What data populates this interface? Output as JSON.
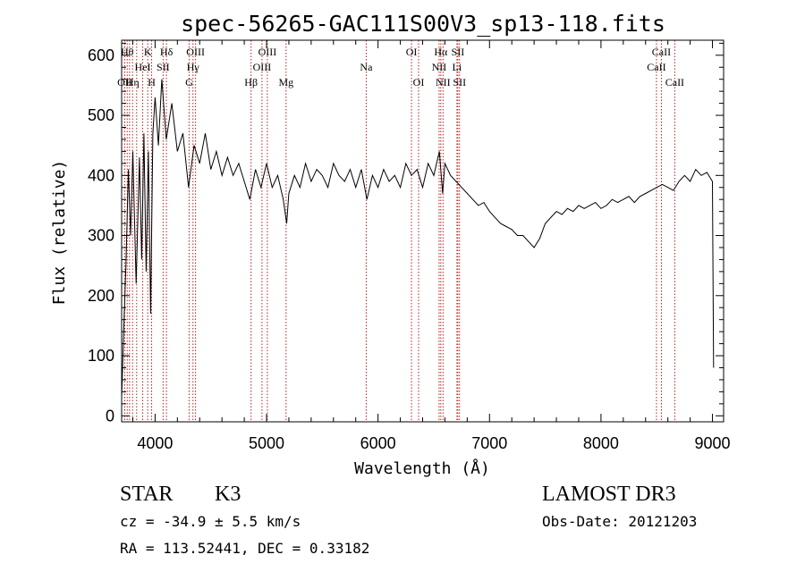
{
  "chart_data": {
    "type": "line",
    "title": "spec-56265-GAC111S00V3_sp13-118.fits",
    "xlabel": "Wavelength (Å)",
    "ylabel": "Flux (relative)",
    "xlim": [
      3700,
      9100
    ],
    "ylim": [
      -10,
      625
    ],
    "xticks": [
      4000,
      5000,
      6000,
      7000,
      8000,
      9000
    ],
    "yticks": [
      0,
      100,
      200,
      300,
      400,
      500,
      600
    ],
    "series": [
      {
        "name": "flux",
        "points": [
          [
            3700,
            30
          ],
          [
            3720,
            150
          ],
          [
            3740,
            260
          ],
          [
            3760,
            410
          ],
          [
            3780,
            300
          ],
          [
            3800,
            440
          ],
          [
            3830,
            220
          ],
          [
            3860,
            430
          ],
          [
            3880,
            260
          ],
          [
            3900,
            470
          ],
          [
            3920,
            240
          ],
          [
            3940,
            440
          ],
          [
            3960,
            170
          ],
          [
            3980,
            470
          ],
          [
            4000,
            530
          ],
          [
            4030,
            450
          ],
          [
            4060,
            560
          ],
          [
            4100,
            460
          ],
          [
            4150,
            520
          ],
          [
            4200,
            440
          ],
          [
            4250,
            470
          ],
          [
            4300,
            380
          ],
          [
            4350,
            450
          ],
          [
            4400,
            420
          ],
          [
            4450,
            470
          ],
          [
            4500,
            410
          ],
          [
            4550,
            440
          ],
          [
            4600,
            400
          ],
          [
            4650,
            430
          ],
          [
            4700,
            400
          ],
          [
            4750,
            420
          ],
          [
            4800,
            390
          ],
          [
            4850,
            360
          ],
          [
            4900,
            410
          ],
          [
            4950,
            380
          ],
          [
            5000,
            420
          ],
          [
            5050,
            380
          ],
          [
            5100,
            400
          ],
          [
            5150,
            360
          ],
          [
            5180,
            320
          ],
          [
            5200,
            370
          ],
          [
            5250,
            400
          ],
          [
            5300,
            380
          ],
          [
            5350,
            420
          ],
          [
            5400,
            390
          ],
          [
            5450,
            410
          ],
          [
            5500,
            400
          ],
          [
            5550,
            380
          ],
          [
            5600,
            420
          ],
          [
            5650,
            400
          ],
          [
            5700,
            390
          ],
          [
            5750,
            410
          ],
          [
            5800,
            380
          ],
          [
            5850,
            410
          ],
          [
            5900,
            360
          ],
          [
            5950,
            400
          ],
          [
            6000,
            380
          ],
          [
            6050,
            410
          ],
          [
            6100,
            390
          ],
          [
            6150,
            400
          ],
          [
            6200,
            380
          ],
          [
            6250,
            420
          ],
          [
            6300,
            400
          ],
          [
            6350,
            410
          ],
          [
            6400,
            380
          ],
          [
            6450,
            420
          ],
          [
            6500,
            400
          ],
          [
            6550,
            440
          ],
          [
            6580,
            370
          ],
          [
            6600,
            420
          ],
          [
            6650,
            400
          ],
          [
            6700,
            390
          ],
          [
            6750,
            380
          ],
          [
            6800,
            370
          ],
          [
            6850,
            360
          ],
          [
            6900,
            350
          ],
          [
            6950,
            355
          ],
          [
            7000,
            340
          ],
          [
            7050,
            330
          ],
          [
            7100,
            320
          ],
          [
            7150,
            315
          ],
          [
            7200,
            310
          ],
          [
            7250,
            300
          ],
          [
            7300,
            300
          ],
          [
            7350,
            290
          ],
          [
            7400,
            280
          ],
          [
            7450,
            295
          ],
          [
            7500,
            320
          ],
          [
            7550,
            330
          ],
          [
            7600,
            340
          ],
          [
            7650,
            335
          ],
          [
            7700,
            345
          ],
          [
            7750,
            340
          ],
          [
            7800,
            350
          ],
          [
            7850,
            345
          ],
          [
            7900,
            350
          ],
          [
            7950,
            355
          ],
          [
            8000,
            345
          ],
          [
            8050,
            350
          ],
          [
            8100,
            360
          ],
          [
            8150,
            355
          ],
          [
            8200,
            360
          ],
          [
            8250,
            365
          ],
          [
            8300,
            355
          ],
          [
            8350,
            365
          ],
          [
            8400,
            370
          ],
          [
            8450,
            375
          ],
          [
            8500,
            380
          ],
          [
            8550,
            385
          ],
          [
            8600,
            380
          ],
          [
            8650,
            375
          ],
          [
            8700,
            390
          ],
          [
            8750,
            400
          ],
          [
            8800,
            390
          ],
          [
            8850,
            410
          ],
          [
            8900,
            400
          ],
          [
            8950,
            405
          ],
          [
            9000,
            390
          ],
          [
            9010,
            80
          ]
        ]
      }
    ],
    "reference_lines": [
      {
        "wavelength": 3728,
        "labels": [
          "OII"
        ],
        "tier": 2
      },
      {
        "wavelength": 3750,
        "labels": [
          "Hθ"
        ],
        "tier": 0
      },
      {
        "wavelength": 3771,
        "labels": [],
        "tier": 0
      },
      {
        "wavelength": 3798,
        "labels": [
          "Hη"
        ],
        "tier": 2
      },
      {
        "wavelength": 3835,
        "labels": [],
        "tier": 0
      },
      {
        "wavelength": 3889,
        "labels": [
          "HeI"
        ],
        "tier": 1
      },
      {
        "wavelength": 3934,
        "labels": [
          "K"
        ],
        "tier": 0
      },
      {
        "wavelength": 3969,
        "labels": [
          "H"
        ],
        "tier": 2
      },
      {
        "wavelength": 4072,
        "labels": [
          "SII"
        ],
        "tier": 1
      },
      {
        "wavelength": 4102,
        "labels": [
          "Hδ"
        ],
        "tier": 0
      },
      {
        "wavelength": 4305,
        "labels": [
          "G"
        ],
        "tier": 2
      },
      {
        "wavelength": 4340,
        "labels": [
          "Hγ"
        ],
        "tier": 1
      },
      {
        "wavelength": 4363,
        "labels": [
          "OIII"
        ],
        "tier": 0
      },
      {
        "wavelength": 4861,
        "labels": [
          "Hβ"
        ],
        "tier": 2
      },
      {
        "wavelength": 4959,
        "labels": [
          "OIII"
        ],
        "tier": 1
      },
      {
        "wavelength": 5007,
        "labels": [
          "OIII"
        ],
        "tier": 0
      },
      {
        "wavelength": 5175,
        "labels": [
          "Mg"
        ],
        "tier": 2
      },
      {
        "wavelength": 5894,
        "labels": [
          "Na"
        ],
        "tier": 1
      },
      {
        "wavelength": 6300,
        "labels": [
          "OI"
        ],
        "tier": 0
      },
      {
        "wavelength": 6364,
        "labels": [
          "OI"
        ],
        "tier": 2
      },
      {
        "wavelength": 6548,
        "labels": [
          "NII"
        ],
        "tier": 1
      },
      {
        "wavelength": 6563,
        "labels": [
          "Hα"
        ],
        "tier": 0
      },
      {
        "wavelength": 6583,
        "labels": [
          "NII"
        ],
        "tier": 2
      },
      {
        "wavelength": 6708,
        "labels": [
          "Li"
        ],
        "tier": 1
      },
      {
        "wavelength": 6716,
        "labels": [
          "SII"
        ],
        "tier": 0
      },
      {
        "wavelength": 6731,
        "labels": [
          "SII"
        ],
        "tier": 2
      },
      {
        "wavelength": 8498,
        "labels": [
          "CaII"
        ],
        "tier": 1
      },
      {
        "wavelength": 8542,
        "labels": [
          "CaII"
        ],
        "tier": 0
      },
      {
        "wavelength": 8662,
        "labels": [
          "CaII"
        ],
        "tier": 2
      }
    ]
  },
  "info": {
    "object_class": "STAR",
    "subclass": "K3",
    "survey": "LAMOST DR3",
    "redshift_text": "cz = -34.9 ± 5.5 km/s",
    "obs_date": "Obs-Date: 20121203",
    "coords": "RA = 113.52441, DEC =   0.33182"
  }
}
